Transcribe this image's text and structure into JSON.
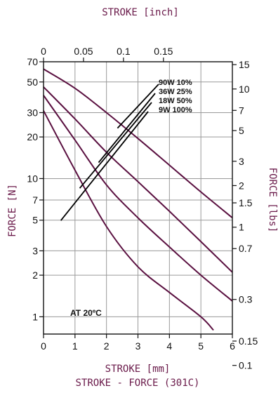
{
  "chart_data": {
    "type": "line",
    "title": "STROKE - FORCE (301C)",
    "top_axis_title": "STROKE [inch]",
    "bottom_axis_title": "STROKE [mm]",
    "left_axis_title": "FORCE [N]",
    "right_axis_title": "FORCE [lbs]",
    "annotation": "AT 20ºC",
    "x_mm": {
      "min": 0,
      "max": 6,
      "ticks": [
        "0",
        "1",
        "2",
        "3",
        "4",
        "5",
        "6"
      ]
    },
    "x_inch": {
      "ticks": [
        "0",
        "0.05",
        "0.1",
        "0.15"
      ],
      "values": [
        0,
        0.05,
        0.1,
        0.15
      ]
    },
    "y_newton": {
      "min": 0.75,
      "max": 70,
      "scale": "log",
      "ticks": [
        "70",
        "50",
        "30",
        "20",
        "10",
        "7",
        "5",
        "3",
        "2",
        "1"
      ],
      "values": [
        70,
        50,
        30,
        20,
        10,
        7,
        5,
        3,
        2,
        1
      ]
    },
    "y_lbs": {
      "ticks": [
        "15",
        "10",
        "7",
        "5",
        "3",
        "2",
        "1.5",
        "1",
        "0.7",
        "0.3",
        "0.15",
        "0.1"
      ],
      "values": [
        15,
        10,
        7,
        5,
        3,
        2,
        1.5,
        1,
        0.7,
        0.3,
        0.15,
        0.1
      ]
    },
    "series": [
      {
        "name": "90W 10%",
        "x": [
          0,
          1,
          2,
          3,
          4,
          5,
          6
        ],
        "y": [
          62,
          45,
          30,
          19.5,
          12.5,
          8,
          5.2
        ]
      },
      {
        "name": "36W 25%",
        "x": [
          0,
          1,
          2,
          3,
          4,
          5,
          6
        ],
        "y": [
          46,
          27,
          15.5,
          9.5,
          5.8,
          3.5,
          2.1
        ]
      },
      {
        "name": "18W 50%",
        "x": [
          0,
          1,
          2,
          3,
          4,
          5,
          6
        ],
        "y": [
          40,
          19,
          9,
          5.2,
          3.2,
          2.0,
          1.3
        ]
      },
      {
        "name": "9W 100%",
        "x": [
          0,
          1,
          2,
          3,
          4,
          5,
          5.4
        ],
        "y": [
          31,
          11.5,
          4.5,
          2.3,
          1.5,
          1.0,
          0.8
        ]
      }
    ],
    "grid": true,
    "legend": "leader lines top-center"
  }
}
